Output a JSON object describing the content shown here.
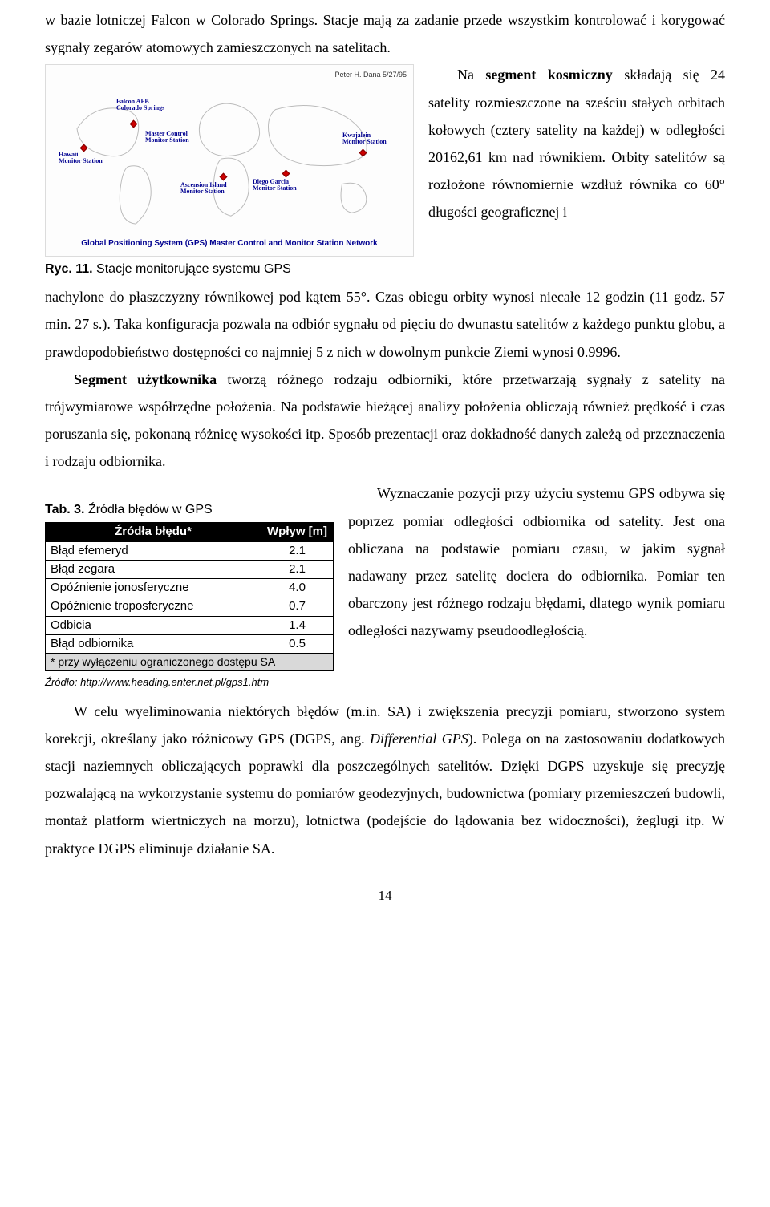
{
  "p1_a": "w bazie lotniczej Falcon w Colorado Springs. Stacje mają za zadanie przede wszystkim kontrolować i korygować sygnały zegarów atomowych zamieszczonych na satelitach.",
  "fig": {
    "credit": "Peter H. Dana 5/27/95",
    "footer": "Global Positioning System (GPS) Master Control and Monitor Station Network",
    "stations": {
      "falcon": "Falcon AFB\nColorado Springs",
      "hawaii": "Hawaii\nMonitor Station",
      "master": "Master Control\nMonitor Station",
      "ascension": "Ascension Island\nMonitor Station",
      "diego": "Diego Garcia\nMonitor Station",
      "kwajalein": "Kwajalein\nMonitor Station"
    },
    "caption_b": "Ryc. 11. ",
    "caption_r": "Stacje monitorujące systemu GPS"
  },
  "p2_a": "Na ",
  "p2_b": "segment kosmiczny",
  "p2_c": " składają się 24 satelity rozmieszczone na sześciu stałych orbitach kołowych (cztery satelity na każdej) w odległości 20162,61 km nad równikiem. Orbity satelitów są rozłożone równomiernie wzdłuż równika co 60° długości geograficznej   i",
  "p2_end": "nachylone do płaszczyzny równikowej pod kątem 55°. Czas obiegu orbity wynosi niecałe  12 godzin (11 godz. 57 min. 27 s.). Taka konfiguracja pozwala na odbiór sygnału od pięciu do dwunastu satelitów z każdego punktu globu, a prawdopodobieństwo dostępności co najmniej 5 z nich w dowolnym punkcie Ziemi wynosi 0.9996.",
  "p3_a": "Segment użytkownika",
  "p3_b": " tworzą różnego rodzaju odbiorniki, które przetwarzają sygnały z satelity na trójwymiarowe współrzędne położenia. Na podstawie bieżącej analizy położenia obliczają również prędkość i czas poruszania się, pokonaną różnicę wysokości itp. Sposób prezentacji oraz dokładność danych zależą od przeznaczenia i rodzaju odbiornika.",
  "p4_pre": "Wyznaczanie pozycji przy użyciu systemu GPS odbywa się poprzez pomiar odległości odbiornika od satelity. Jest ona obliczana na podstawie pomiaru czasu, w jakim sygnał nadawany przez satelitę dociera do odbiornika. Pomiar ten obarczony jest różnego rodzaju błędami, dlatego wynik pomiaru odległości nazywamy pseudoodległością.",
  "tab": {
    "caption_b": "Tab. 3. ",
    "caption_r": "Źródła błędów w GPS",
    "header_source": "Źródła błędu*",
    "header_impact": "Wpływ [m]",
    "rows": [
      {
        "label": "Błąd efemeryd",
        "val": "2.1"
      },
      {
        "label": "Błąd zegara",
        "val": "2.1"
      },
      {
        "label": "Opóźnienie jonosferyczne",
        "val": "4.0"
      },
      {
        "label": "Opóźnienie troposferyczne",
        "val": "0.7"
      },
      {
        "label": "Odbicia",
        "val": "1.4"
      },
      {
        "label": "Błąd odbiornika",
        "val": "0.5"
      }
    ],
    "note": "* przy wyłączeniu ograniczonego dostępu SA",
    "source": "Źródło: http://www.heading.enter.net.pl/gps1.htm"
  },
  "p5": "W celu wyeliminowania niektórych błędów (m.in. SA) i zwiększenia precyzji pomiaru, stworzono system korekcji, określany jako różnicowy GPS (DGPS, ang. ",
  "p5_i": "Differential GPS",
  "p5_b": "). Polega on na zastosowaniu dodatkowych stacji naziemnych obliczających poprawki dla poszczególnych satelitów. Dzięki DGPS uzyskuje się precyzję pozwalającą na wykorzystanie systemu do pomiarów geodezyjnych, budownictwa (pomiary przemieszczeń budowli, montaż platform wiertniczych na morzu), lotnictwa (podejście do lądowania bez widoczności), żeglugi itp. W praktyce DGPS eliminuje działanie SA.",
  "pagenum": "14"
}
